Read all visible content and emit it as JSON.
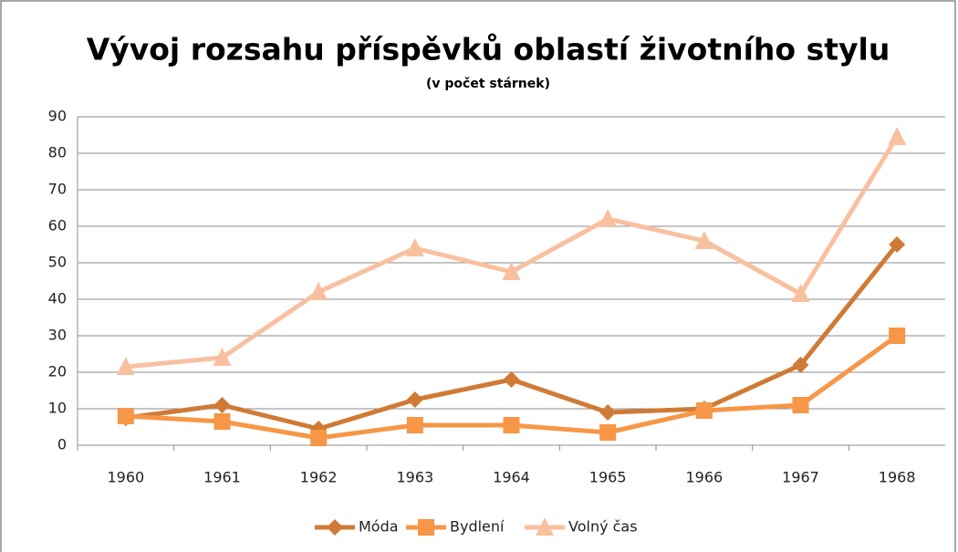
{
  "chart_data": {
    "type": "line",
    "title": "Vývoj rozsahu příspěvků oblastí životního stylu",
    "subtitle": "(v počet stárnek)",
    "categories": [
      "1960",
      "1961",
      "1962",
      "1963",
      "1964",
      "1965",
      "1966",
      "1967",
      "1968"
    ],
    "series": [
      {
        "name": "Móda",
        "color": "#d07a35",
        "marker": "diamond",
        "values": [
          7.5,
          11,
          4.5,
          12.5,
          18,
          9,
          10,
          22,
          55
        ]
      },
      {
        "name": "Bydlení",
        "color": "#f79646",
        "marker": "square",
        "values": [
          8,
          6.5,
          2,
          5.5,
          5.5,
          3.5,
          9.5,
          11,
          30
        ]
      },
      {
        "name": "Volný čas",
        "color": "#f9c0a0",
        "marker": "triangle",
        "values": [
          21.5,
          24,
          42,
          54,
          47.5,
          62,
          56,
          41.5,
          84.5
        ]
      }
    ],
    "ylim": [
      0,
      90
    ],
    "yticks": [
      0,
      10,
      20,
      30,
      40,
      50,
      60,
      70,
      80,
      90
    ],
    "grid": true,
    "legend": "bottom"
  }
}
